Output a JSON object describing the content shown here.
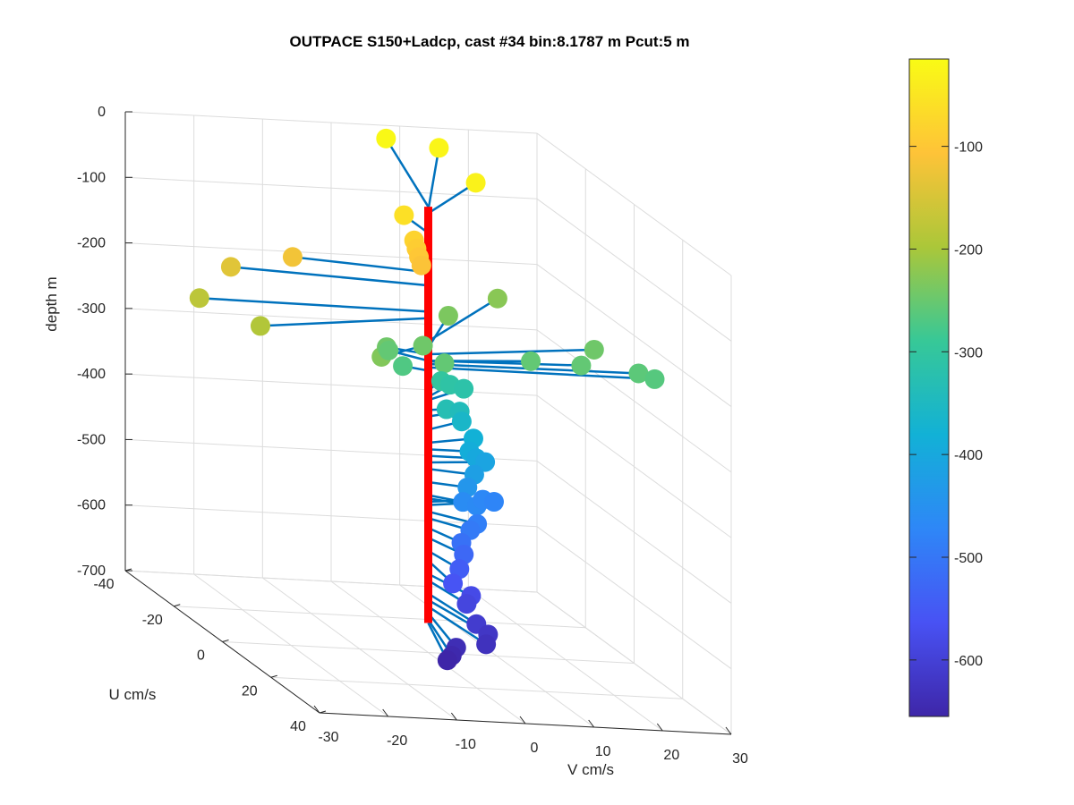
{
  "chart_data": {
    "type": "scatter",
    "title": "OUTPACE S150+Ladcp, cast #34 bin:8.1787 m  Pcut:5 m",
    "xlabel": "V cm/s",
    "ylabel": "U cm/s",
    "zlabel": "depth m",
    "xlim": [
      -30,
      30
    ],
    "ylim": [
      -40,
      40
    ],
    "zlim": [
      -700,
      0
    ],
    "xticks": [
      -30,
      -20,
      -10,
      0,
      10,
      20,
      30
    ],
    "yticks": [
      -40,
      -20,
      0,
      20,
      40
    ],
    "zticks": [
      0,
      -100,
      -200,
      -300,
      -400,
      -500,
      -600,
      -700
    ],
    "grid": true,
    "colorbar": {
      "ticks": [
        -100,
        -200,
        -300,
        -400,
        -500,
        -600
      ],
      "range": [
        -655,
        -15
      ],
      "colormap": "parula"
    },
    "mast_color": "#ff0000",
    "stick_color": "#0072bd",
    "points": [
      {
        "z": -20,
        "v": 8,
        "u": -40
      },
      {
        "z": -25,
        "v": 15,
        "u": -38
      },
      {
        "z": -30,
        "v": 14,
        "u": -20
      },
      {
        "z": -60,
        "v": 0,
        "u": -10
      },
      {
        "z": -80,
        "v": -1,
        "u": -3
      },
      {
        "z": -90,
        "v": -1,
        "u": -2
      },
      {
        "z": -100,
        "v": -1,
        "u": -1
      },
      {
        "z": -110,
        "v": -1,
        "u": 0
      },
      {
        "z": -120,
        "v": -18,
        "u": -5
      },
      {
        "z": -140,
        "v": -27,
        "u": -5
      },
      {
        "z": -180,
        "v": -33,
        "u": -1
      },
      {
        "z": -190,
        "v": -28,
        "u": 10
      },
      {
        "z": -225,
        "v": 20,
        "u": -28
      },
      {
        "z": -235,
        "v": 10,
        "u": -20
      },
      {
        "z": -245,
        "v": 1,
        "u": -5
      },
      {
        "z": -230,
        "v": -10,
        "u": 9
      },
      {
        "z": -245,
        "v": 27,
        "u": -8
      },
      {
        "z": -260,
        "v": 31,
        "u": -1
      },
      {
        "z": -265,
        "v": 33,
        "u": 0
      },
      {
        "z": -255,
        "v": 23,
        "u": -2
      },
      {
        "z": -255,
        "v": 16,
        "u": -3
      },
      {
        "z": -255,
        "v": 2,
        "u": 1
      },
      {
        "z": -245,
        "v": -5,
        "u": -3
      },
      {
        "z": -255,
        "v": -4,
        "u": -5
      },
      {
        "z": -270,
        "v": -3,
        "u": -2
      },
      {
        "z": -300,
        "v": 4,
        "u": -6
      },
      {
        "z": -310,
        "v": 6,
        "u": -8
      },
      {
        "z": -315,
        "v": 8,
        "u": -8
      },
      {
        "z": -330,
        "v": 3,
        "u": -1
      },
      {
        "z": -340,
        "v": 6,
        "u": -4
      },
      {
        "z": -360,
        "v": 7,
        "u": -6
      },
      {
        "z": -380,
        "v": 8,
        "u": -4
      },
      {
        "z": -390,
        "v": 6,
        "u": 0
      },
      {
        "z": -400,
        "v": 7,
        "u": 0
      },
      {
        "z": -410,
        "v": 9,
        "u": -2
      },
      {
        "z": -420,
        "v": 6,
        "u": 2
      },
      {
        "z": -440,
        "v": 5,
        "u": 2
      },
      {
        "z": -460,
        "v": 4,
        "u": 3
      },
      {
        "z": -465,
        "v": 6,
        "u": 3
      },
      {
        "z": -470,
        "v": 9,
        "u": -3
      },
      {
        "z": -475,
        "v": 11,
        "u": -4
      },
      {
        "z": -485,
        "v": 5,
        "u": 6
      },
      {
        "z": -495,
        "v": 4,
        "u": 6
      },
      {
        "z": -510,
        "v": 2,
        "u": 8
      },
      {
        "z": -525,
        "v": 2,
        "u": 9
      },
      {
        "z": -545,
        "v": 1,
        "u": 10
      },
      {
        "z": -560,
        "v": -1,
        "u": 13
      },
      {
        "z": -580,
        "v": 2,
        "u": 12
      },
      {
        "z": -590,
        "v": 1,
        "u": 13
      },
      {
        "z": -610,
        "v": 1,
        "u": 17
      },
      {
        "z": -620,
        "v": 2,
        "u": 19
      },
      {
        "z": -630,
        "v": 1,
        "u": 21
      },
      {
        "z": -640,
        "v": -3,
        "u": 20
      },
      {
        "z": -650,
        "v": -4,
        "u": 21
      },
      {
        "z": -655,
        "v": -5,
        "u": 22
      }
    ]
  }
}
